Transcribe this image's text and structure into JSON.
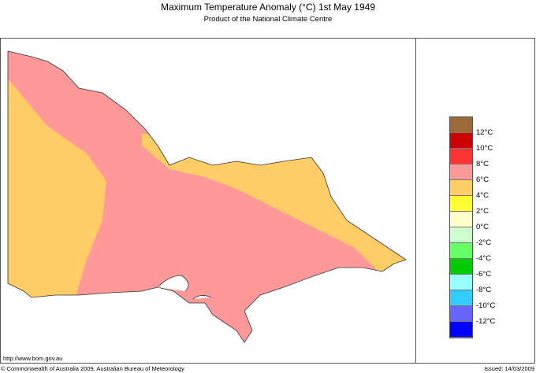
{
  "title": "Maximum Temperature Anomaly (°C)  1st May 1949",
  "subtitle": "Product of the National Climate Centre",
  "url": "http://www.bom.gov.au",
  "copyright": "© Commonwealth of Australia 2009, Australian Bureau of Meteorology",
  "issued": "Issued: 14/03/2009",
  "legend": {
    "colors": [
      "#9c6a3a",
      "#cc0000",
      "#ff3333",
      "#ff9999",
      "#ffcc66",
      "#ffff33",
      "#ffffcc",
      "#ccffcc",
      "#66ff66",
      "#00cc00",
      "#99ffff",
      "#33ccff",
      "#6666ff",
      "#0000ff"
    ],
    "labels": [
      "12°C",
      "10°C",
      "8°C",
      "6°C",
      "4°C",
      "2°C",
      "0°C",
      "-2°C",
      "-4°C",
      "-6°C",
      "-8°C",
      "-10°C",
      "-12°C"
    ]
  },
  "map": {
    "region": "Victoria",
    "dominant_colors": [
      "#ff9999",
      "#ffcc66"
    ]
  }
}
